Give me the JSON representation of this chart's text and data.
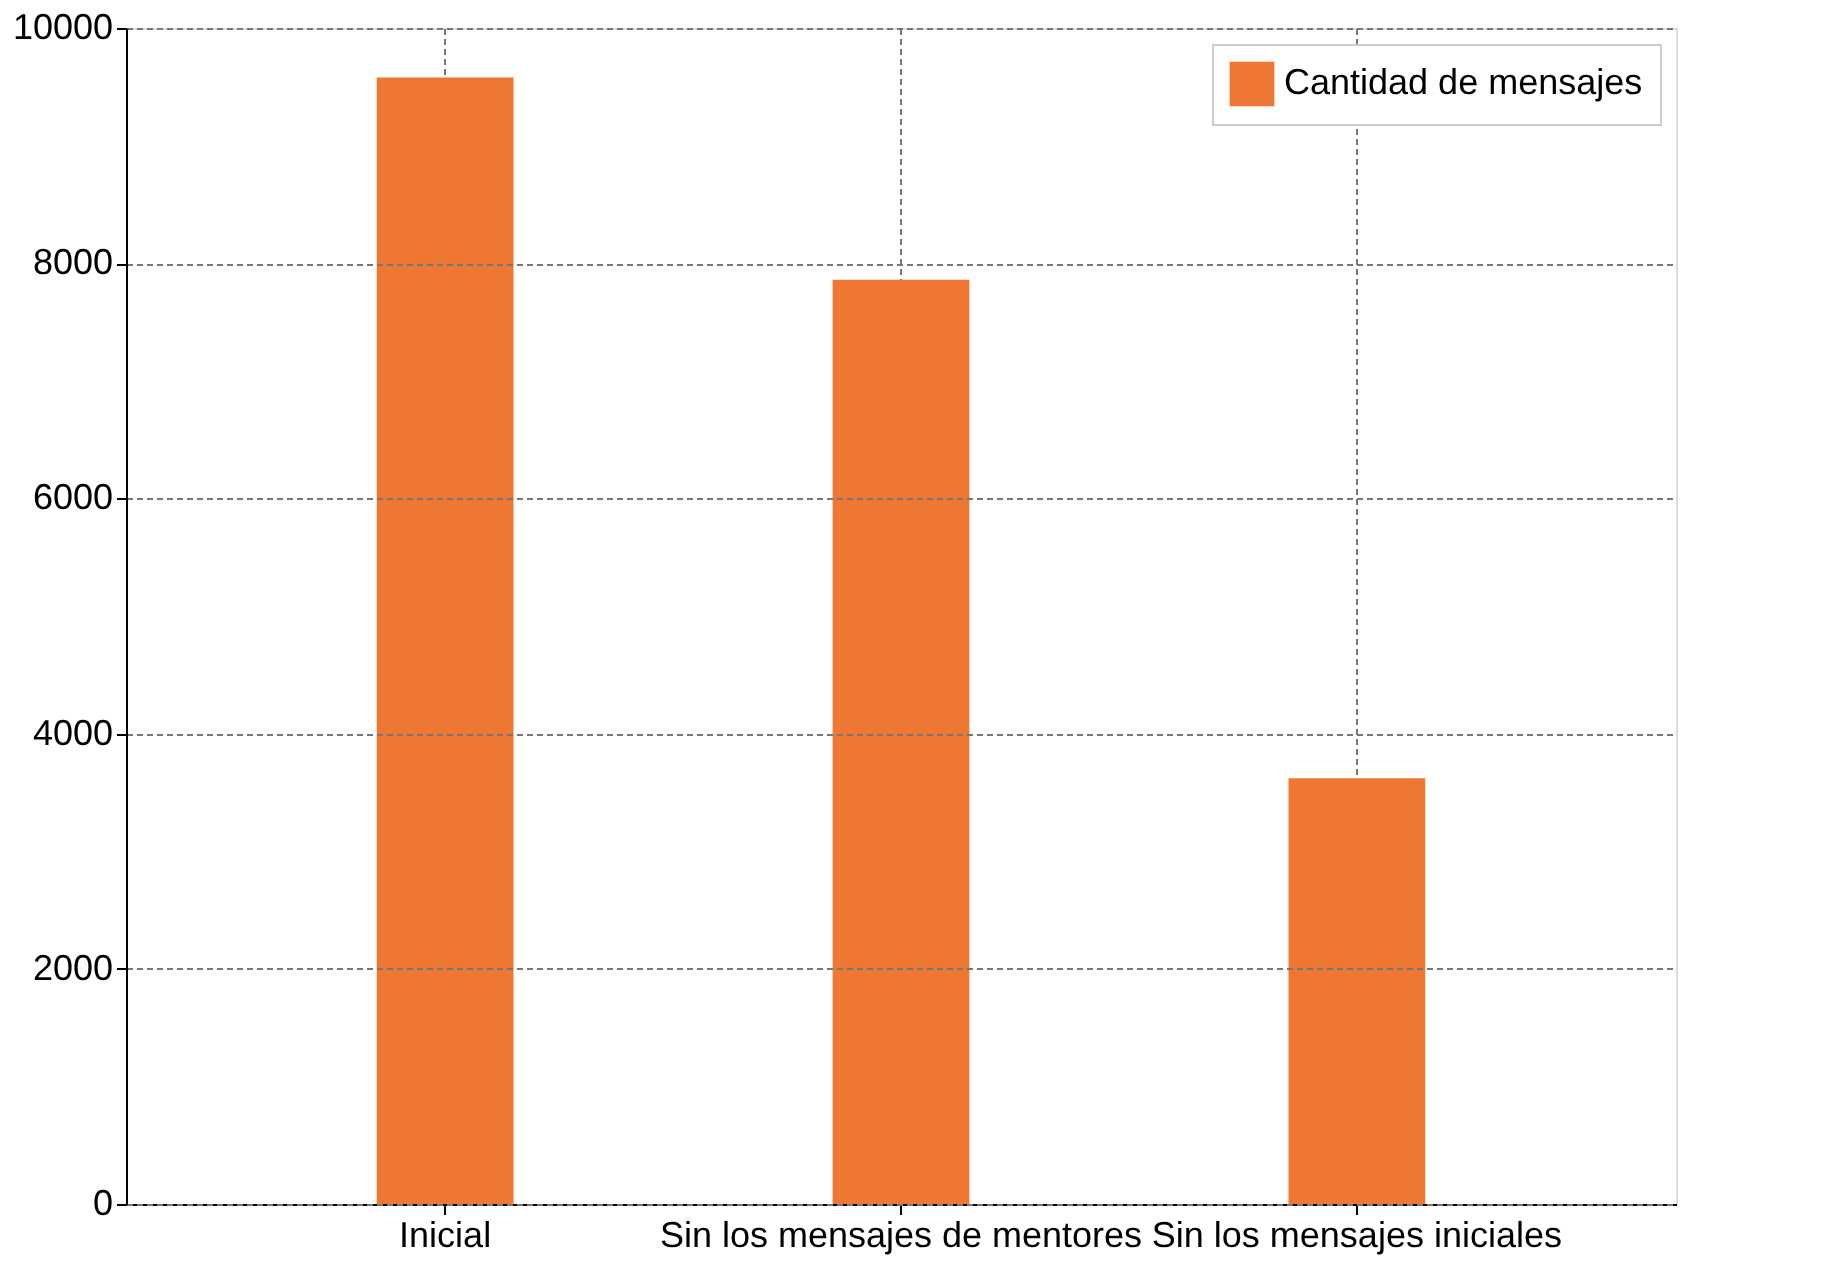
{
  "chart_data": {
    "type": "bar",
    "categories": [
      "Inicial",
      "Sin los mensajes de mentores",
      "Sin los mensajes iniciales"
    ],
    "series": [
      {
        "name": "Cantidad de mensajes",
        "color": "#ee7733",
        "values": [
          9580,
          7860,
          3620
        ]
      }
    ],
    "ylim": [
      0,
      10000
    ],
    "yticks": [
      0,
      2000,
      4000,
      6000,
      8000,
      10000
    ],
    "grid": true,
    "legend": "top right"
  }
}
